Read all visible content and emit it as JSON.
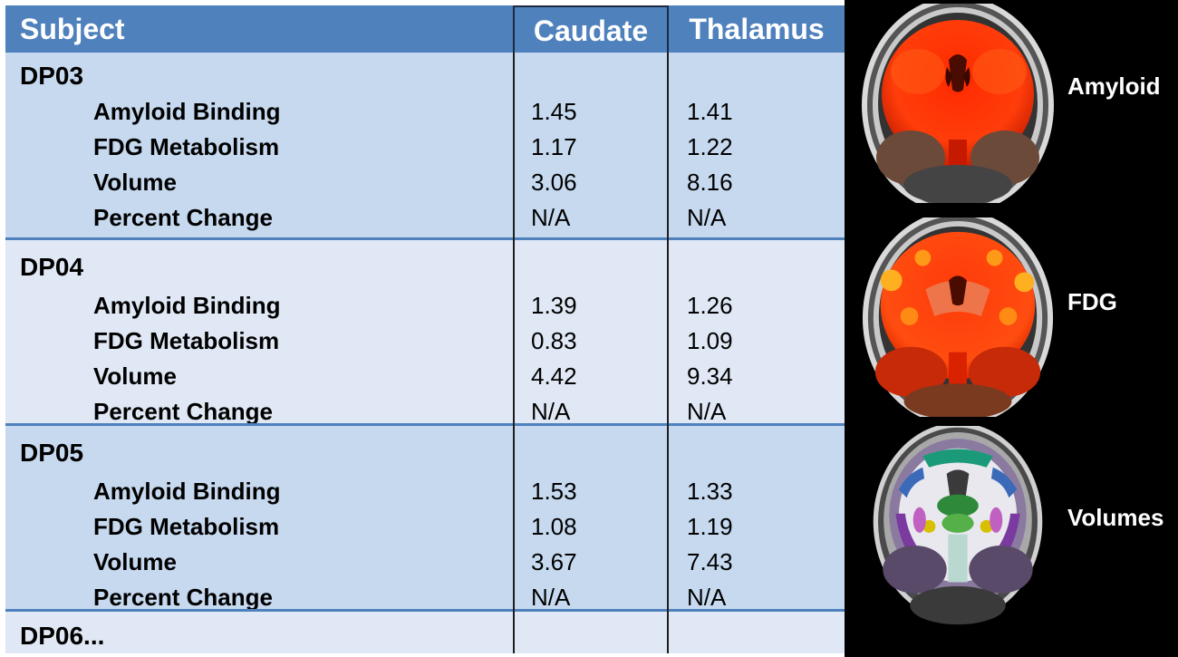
{
  "table": {
    "headers": {
      "subject": "Subject",
      "caudate": "Caudate",
      "thalamus": "Thalamus"
    },
    "subjects": [
      {
        "id": "DP03",
        "rows": [
          {
            "label": "Amyloid Binding",
            "caudate": "1.45",
            "thalamus": "1.41"
          },
          {
            "label": "FDG Metabolism",
            "caudate": "1.17",
            "thalamus": "1.22"
          },
          {
            "label": "Volume",
            "caudate": "3.06",
            "thalamus": "8.16"
          },
          {
            "label": "Percent Change",
            "caudate": "N/A",
            "thalamus": "N/A"
          }
        ]
      },
      {
        "id": "DP04",
        "rows": [
          {
            "label": "Amyloid Binding",
            "caudate": "1.39",
            "thalamus": "1.26"
          },
          {
            "label": "FDG Metabolism",
            "caudate": "0.83",
            "thalamus": "1.09"
          },
          {
            "label": "Volume",
            "caudate": "4.42",
            "thalamus": "9.34"
          },
          {
            "label": "Percent Change",
            "caudate": "N/A",
            "thalamus": "N/A"
          }
        ]
      },
      {
        "id": "DP05",
        "rows": [
          {
            "label": "Amyloid Binding",
            "caudate": "1.53",
            "thalamus": "1.33"
          },
          {
            "label": "FDG Metabolism",
            "caudate": "1.08",
            "thalamus": "1.19"
          },
          {
            "label": "Volume",
            "caudate": "3.67",
            "thalamus": "7.43"
          },
          {
            "label": "Percent Change",
            "caudate": "N/A",
            "thalamus": "N/A"
          }
        ]
      },
      {
        "id": "DP06...",
        "rows": []
      }
    ]
  },
  "panels": [
    {
      "label": "Amyloid",
      "icon": "amyloid-pet-scan"
    },
    {
      "label": "FDG",
      "icon": "fdg-pet-scan"
    },
    {
      "label": "Volumes",
      "icon": "mri-volume-segmentation"
    }
  ],
  "colors": {
    "header_bg": "#4f81bd",
    "row_dark": "#c6d9ef",
    "row_light": "#dfe8f4",
    "pet_hot": "#ff3a0a",
    "panel_bg": "#000000"
  }
}
